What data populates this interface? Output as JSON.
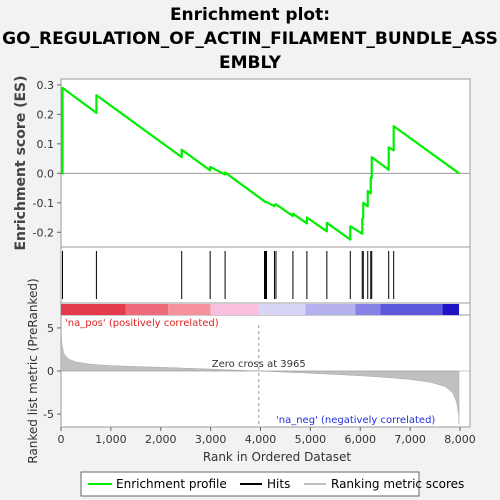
{
  "chart_data": {
    "type": "line",
    "title_lines": [
      "Enrichment plot:",
      "GO_REGULATION_OF_ACTIN_FILAMENT_BUNDLE_ASS",
      "EMBLY"
    ],
    "es_panel": {
      "ylabel": "Enrichment score (ES)",
      "ylim": [
        -0.25,
        0.32
      ],
      "yticks": [
        -0.2,
        -0.1,
        0.0,
        0.1,
        0.2,
        0.3
      ],
      "ytick_labels": [
        "-0.2",
        "-0.1",
        "0.0",
        "0.1",
        "0.2",
        "0.3"
      ],
      "line_color": "#00ee00",
      "points": [
        [
          0,
          0.0
        ],
        [
          30,
          0.0
        ],
        [
          30,
          0.29
        ],
        [
          710,
          0.205
        ],
        [
          710,
          0.265
        ],
        [
          2420,
          0.055
        ],
        [
          2420,
          0.08
        ],
        [
          2990,
          0.01
        ],
        [
          2990,
          0.022
        ],
        [
          3290,
          -0.004
        ],
        [
          3290,
          0.003
        ],
        [
          4080,
          -0.095
        ],
        [
          4100,
          -0.098
        ],
        [
          4120,
          -0.097
        ],
        [
          4280,
          -0.112
        ],
        [
          4280,
          -0.107
        ],
        [
          4310,
          -0.105
        ],
        [
          4650,
          -0.145
        ],
        [
          4650,
          -0.137
        ],
        [
          4930,
          -0.17
        ],
        [
          4930,
          -0.15
        ],
        [
          5330,
          -0.197
        ],
        [
          5330,
          -0.168
        ],
        [
          5800,
          -0.225
        ],
        [
          5800,
          -0.18
        ],
        [
          6040,
          -0.205
        ],
        [
          6040,
          -0.155
        ],
        [
          6060,
          -0.15
        ],
        [
          6060,
          -0.1
        ],
        [
          6150,
          -0.112
        ],
        [
          6150,
          -0.06
        ],
        [
          6210,
          -0.068
        ],
        [
          6210,
          -0.015
        ],
        [
          6230,
          -0.015
        ],
        [
          6230,
          0.055
        ],
        [
          6570,
          0.012
        ],
        [
          6570,
          0.088
        ],
        [
          6670,
          0.078
        ],
        [
          6670,
          0.16
        ],
        [
          7980,
          0.0
        ]
      ]
    },
    "hits": [
      30,
      710,
      2420,
      2990,
      3290,
      4080,
      4100,
      4120,
      4280,
      4310,
      4650,
      4930,
      5330,
      5800,
      6040,
      6060,
      6150,
      6210,
      6230,
      6570,
      6670
    ],
    "gradient_bar": {
      "segments": [
        {
          "from": 0,
          "to": 1300,
          "color": "#e53a4b"
        },
        {
          "from": 1300,
          "to": 2150,
          "color": "#ef6b7b"
        },
        {
          "from": 2150,
          "to": 3000,
          "color": "#f5929e"
        },
        {
          "from": 3000,
          "to": 3965,
          "color": "#f9c0dd"
        },
        {
          "from": 3965,
          "to": 4900,
          "color": "#d8d6f5"
        },
        {
          "from": 4900,
          "to": 5900,
          "color": "#b4b1ee"
        },
        {
          "from": 5900,
          "to": 6400,
          "color": "#8783e6"
        },
        {
          "from": 6400,
          "to": 7650,
          "color": "#5d57dc"
        },
        {
          "from": 7650,
          "to": 7980,
          "color": "#1f14c4"
        }
      ]
    },
    "rank_panel": {
      "ylabel": "Ranked list metric (PreRanked)",
      "ylim": [
        -6.5,
        6.5
      ],
      "yticks": [
        -5,
        0,
        5
      ],
      "ytick_labels": [
        "-5",
        "0",
        "5"
      ],
      "metric_curve": [
        [
          0,
          5.0
        ],
        [
          20,
          3.0
        ],
        [
          60,
          2.0
        ],
        [
          150,
          1.4
        ],
        [
          300,
          1.05
        ],
        [
          600,
          0.78
        ],
        [
          1000,
          0.62
        ],
        [
          1500,
          0.52
        ],
        [
          2000,
          0.43
        ],
        [
          2500,
          0.33
        ],
        [
          3000,
          0.22
        ],
        [
          3500,
          0.1
        ],
        [
          3965,
          0.0
        ],
        [
          4500,
          -0.13
        ],
        [
          5000,
          -0.26
        ],
        [
          5500,
          -0.4
        ],
        [
          6000,
          -0.55
        ],
        [
          6500,
          -0.74
        ],
        [
          7000,
          -0.98
        ],
        [
          7400,
          -1.3
        ],
        [
          7700,
          -1.8
        ],
        [
          7850,
          -2.5
        ],
        [
          7930,
          -3.6
        ],
        [
          7970,
          -5.0
        ],
        [
          7980,
          -6.2
        ]
      ],
      "zero_cross_label": "Zero cross at 3965",
      "zero_cross": 3965,
      "pos_label": "'na_pos' (positively correlated)",
      "neg_label": "'na_neg' (negatively correlated)"
    },
    "xlabel": "Rank in Ordered Dataset",
    "xlim": [
      0,
      8200
    ],
    "xticks": [
      0,
      1000,
      2000,
      3000,
      4000,
      5000,
      6000,
      7000,
      8000
    ],
    "xtick_labels": [
      "0",
      "1,000",
      "2,000",
      "3,000",
      "4,000",
      "5,000",
      "6,000",
      "7,000",
      "8,000"
    ],
    "legend": [
      {
        "label": "Enrichment profile",
        "color": "#00ee00"
      },
      {
        "label": "Hits",
        "color": "#000000"
      },
      {
        "label": "Ranking metric scores",
        "color": "#c0c0c0"
      }
    ]
  }
}
